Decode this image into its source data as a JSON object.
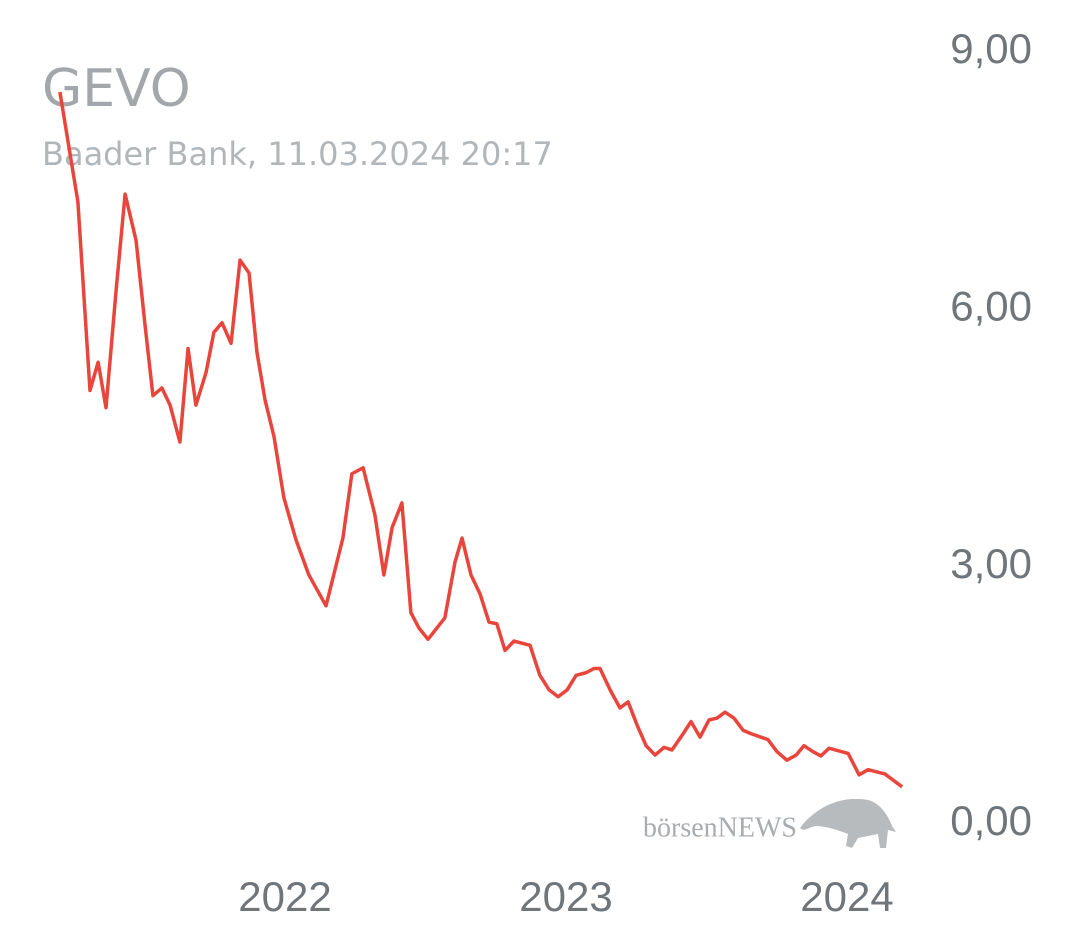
{
  "chart_data": {
    "type": "line",
    "title": "GEVO",
    "subtitle": "Baader Bank, 11.03.2024 20:17",
    "watermark": "börsenNEWS",
    "x": [
      2021.199,
      2021.263,
      2021.306,
      2021.335,
      2021.363,
      2021.399,
      2021.431,
      2021.47,
      2021.502,
      2021.53,
      2021.562,
      2021.591,
      2021.626,
      2021.655,
      2021.683,
      2021.719,
      2021.747,
      2021.776,
      2021.808,
      2021.84,
      2021.872,
      2021.9,
      2021.929,
      2021.961,
      2021.996,
      2022.039,
      2022.085,
      2022.146,
      2022.206,
      2022.238,
      2022.278,
      2022.32,
      2022.352,
      2022.381,
      2022.416,
      2022.448,
      2022.477,
      2022.509,
      2022.569,
      2022.605,
      2022.63,
      2022.662,
      2022.694,
      2022.726,
      2022.754,
      2022.783,
      2022.815,
      2022.872,
      2022.907,
      2022.94,
      2022.972,
      2023.004,
      2023.036,
      2023.071,
      2023.1,
      2023.121,
      2023.157,
      2023.192,
      2023.221,
      2023.253,
      2023.285,
      2023.317,
      2023.349,
      2023.377,
      2023.413,
      2023.445,
      2023.477,
      2023.509,
      2023.537,
      2023.566,
      2023.598,
      2023.63,
      2023.658,
      2023.719,
      2023.751,
      2023.786,
      2023.819,
      2023.847,
      2023.879,
      2023.907,
      2023.936,
      2024.004,
      2024.043,
      2024.075,
      2024.135,
      2024.196
    ],
    "series": [
      {
        "name": "GEVO",
        "color": "#e8453c",
        "values": [
          8.51,
          7.23,
          5.03,
          5.36,
          4.83,
          6.2,
          7.32,
          6.78,
          5.79,
          4.97,
          5.06,
          4.86,
          4.43,
          5.52,
          4.86,
          5.24,
          5.71,
          5.82,
          5.58,
          6.55,
          6.4,
          5.48,
          4.92,
          4.49,
          3.78,
          3.29,
          2.88,
          2.52,
          3.31,
          4.06,
          4.13,
          3.58,
          2.88,
          3.43,
          3.72,
          2.44,
          2.26,
          2.13,
          2.38,
          3.03,
          3.31,
          2.88,
          2.66,
          2.33,
          2.31,
          2.0,
          2.11,
          2.06,
          1.71,
          1.54,
          1.46,
          1.54,
          1.71,
          1.74,
          1.79,
          1.79,
          1.54,
          1.33,
          1.4,
          1.13,
          0.89,
          0.78,
          0.87,
          0.84,
          1.01,
          1.17,
          0.99,
          1.19,
          1.21,
          1.28,
          1.21,
          1.07,
          1.03,
          0.96,
          0.82,
          0.72,
          0.78,
          0.89,
          0.82,
          0.77,
          0.86,
          0.8,
          0.55,
          0.61,
          0.56,
          0.41
        ]
      }
    ],
    "xlim": [
      2021.2,
      2024.2
    ],
    "xticks": [
      2022,
      2023,
      2024
    ],
    "ylim": [
      0,
      9
    ],
    "yticks": [
      {
        "value": 0,
        "label": "0,00"
      },
      {
        "value": 3,
        "label": "3,00"
      },
      {
        "value": 6,
        "label": "6,00"
      },
      {
        "value": 9,
        "label": "9,00"
      }
    ],
    "grid": false
  }
}
